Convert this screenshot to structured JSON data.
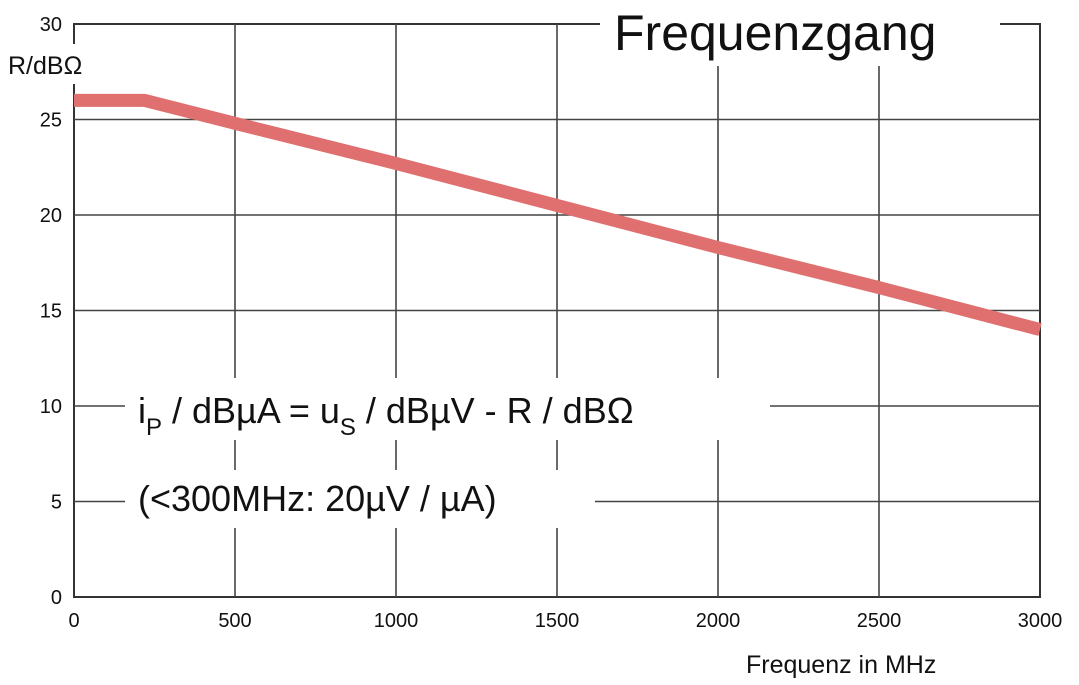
{
  "chart_data": {
    "type": "line",
    "title": "Frequenzgang",
    "xlabel": "Frequenz in MHz",
    "ylabel": "R/dBΩ",
    "xlim": [
      0,
      3000
    ],
    "ylim": [
      0,
      30
    ],
    "x_ticks": [
      0,
      500,
      1000,
      1500,
      2000,
      2500,
      3000
    ],
    "y_ticks": [
      0,
      5,
      10,
      15,
      20,
      25,
      30
    ],
    "grid": true,
    "series": [
      {
        "color": "#e07070",
        "x": [
          0,
          220,
          500,
          1000,
          1500,
          2000,
          2500,
          3000
        ],
        "y": [
          26,
          26,
          24.8,
          22.7,
          20.5,
          18.3,
          16.2,
          14.0
        ]
      }
    ],
    "annotations": {
      "formula": {
        "i": "i",
        "i_sub": "P",
        "middle": " / dBµA = u",
        "u_sub": "S",
        "rest": " / dBµV - R / dBΩ"
      },
      "note": "(<300MHz: 20µV / µA)"
    }
  }
}
